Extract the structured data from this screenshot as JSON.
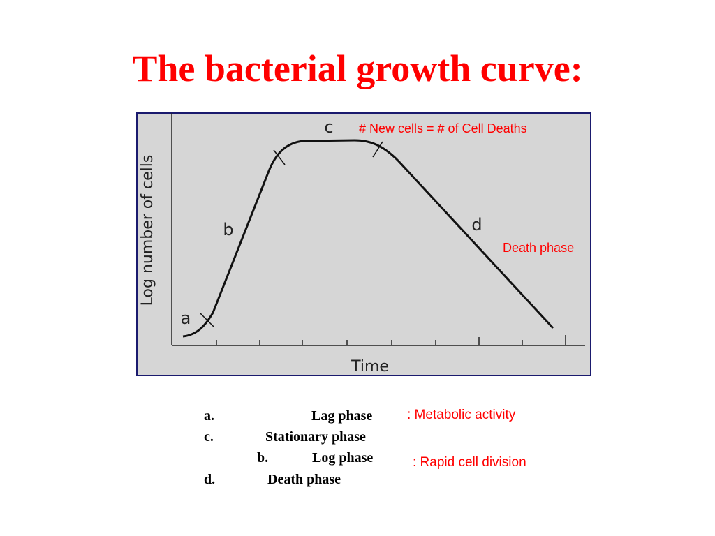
{
  "title": "The bacterial growth curve:",
  "figure": {
    "y_label": "Log number of cells",
    "x_label": "Time",
    "phase_labels": [
      "a",
      "b",
      "c",
      "d"
    ],
    "annotations": [
      "# New cells = # of Cell Deaths",
      "Death phase"
    ]
  },
  "list": [
    {
      "marker": "a.",
      "text": "Lag phase"
    },
    {
      "marker": "c.",
      "text": "Stationary phase"
    },
    {
      "marker": "b.",
      "text": "Log phase"
    },
    {
      "marker": "d.",
      "text": "Death phase"
    }
  ],
  "notes": [
    ": Metabolic activity",
    ": Rapid cell division"
  ]
}
